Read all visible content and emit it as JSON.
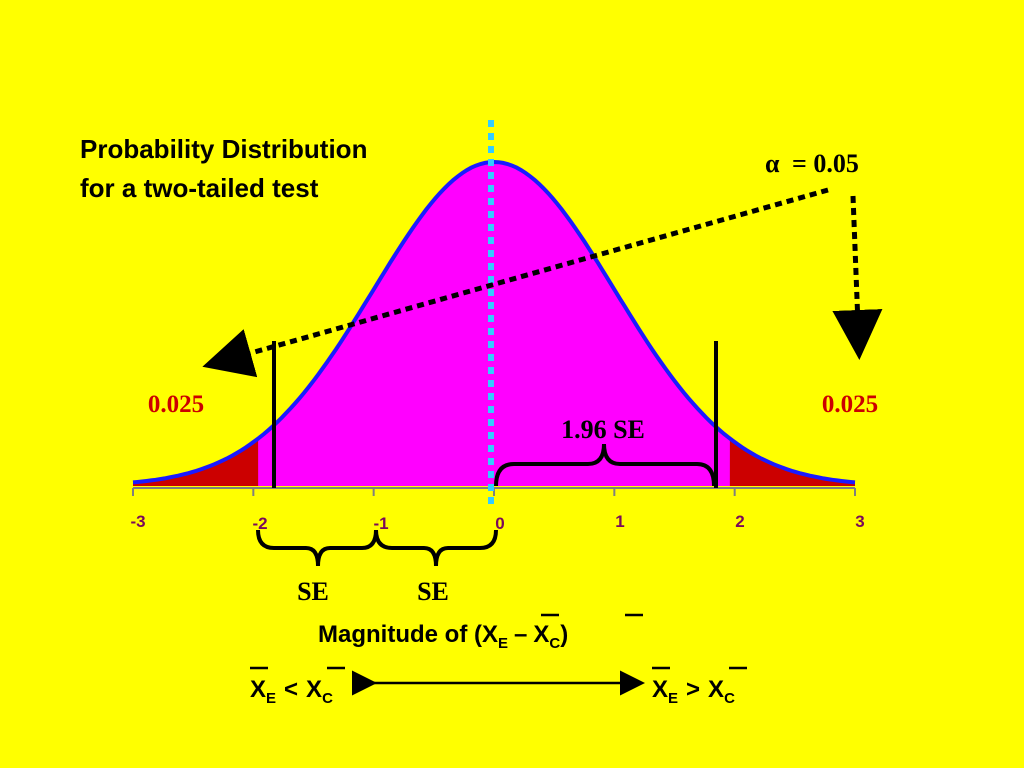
{
  "title": {
    "line1": "Probability Distribution",
    "line2": "for a two-tailed test"
  },
  "alpha": {
    "symbol": "α",
    "text": "= 0.05"
  },
  "tails": {
    "left": "0.025",
    "right": "0.025"
  },
  "critical_label": "1.96 SE",
  "se_labels": [
    "SE",
    "SE"
  ],
  "axis": {
    "ticks": [
      "-3",
      "-2",
      "-1",
      "0",
      "1",
      "2",
      "3"
    ],
    "xlabel_prefix": "Magnitude of (",
    "x_var": "X",
    "sub_e": "E",
    "sub_c": "C",
    "dash": "–",
    "close": ")"
  },
  "direction": {
    "left_var1": "X",
    "left_sub1": "E",
    "left_op": "<",
    "left_var2": "X",
    "left_sub2": "C",
    "right_var1": "X",
    "right_sub1": "E",
    "right_op": ">",
    "right_var2": "X",
    "right_sub2": "C"
  },
  "colors": {
    "background": "#ffff00",
    "curve_fill": "#ff00ff",
    "curve_stroke": "#1a1aff",
    "tail_fill": "#cc0000",
    "center_line": "#33ccff",
    "tick_text": "#7a0a5a",
    "tail_text": "#cc0000"
  },
  "chart_data": {
    "type": "area",
    "distribution": "standard normal",
    "xlim": [
      -3,
      3
    ],
    "center": 0,
    "critical_values": [
      -1.96,
      1.96
    ],
    "tail_probabilities": [
      0.025,
      0.025
    ],
    "alpha": 0.05
  }
}
